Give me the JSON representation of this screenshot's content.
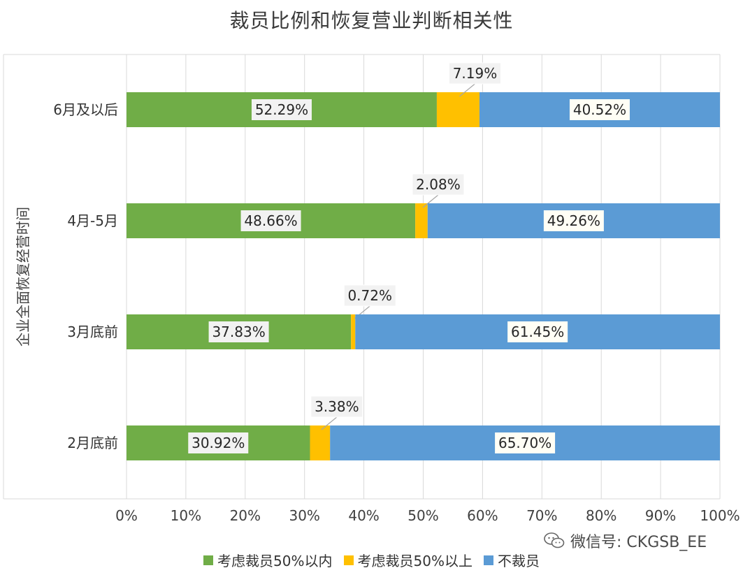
{
  "title": "裁员比例和恢复营业判断相关性",
  "watermark": "微信号: CKGSB_EE",
  "chart_data": {
    "type": "bar",
    "orientation": "horizontal",
    "stacked": true,
    "title": "裁员比例和恢复营业判断相关性",
    "ylabel": "企业全面恢复经营时间",
    "xlabel": "",
    "categories": [
      "6月及以后",
      "4月-5月",
      "3月底前",
      "2月底前"
    ],
    "series": [
      {
        "name": "考虑裁员50%以内",
        "color": "#70ad47",
        "values": [
          52.29,
          48.66,
          37.83,
          30.92
        ],
        "labels": [
          "52.29%",
          "48.66%",
          "37.83%",
          "30.92%"
        ]
      },
      {
        "name": "考虑裁员50%以上",
        "color": "#ffc000",
        "values": [
          7.19,
          2.08,
          0.72,
          3.38
        ],
        "labels": [
          "7.19%",
          "2.08%",
          "0.72%",
          "3.38%"
        ]
      },
      {
        "name": "不裁员",
        "color": "#5b9bd5",
        "values": [
          40.52,
          49.26,
          61.45,
          65.7
        ],
        "labels": [
          "40.52%",
          "49.26%",
          "61.45%",
          "65.70%"
        ]
      }
    ],
    "xlim": [
      0,
      100
    ],
    "xticks": [
      "0%",
      "10%",
      "20%",
      "30%",
      "40%",
      "50%",
      "60%",
      "70%",
      "80%",
      "90%",
      "100%"
    ],
    "grid": true,
    "legend_position": "bottom"
  }
}
